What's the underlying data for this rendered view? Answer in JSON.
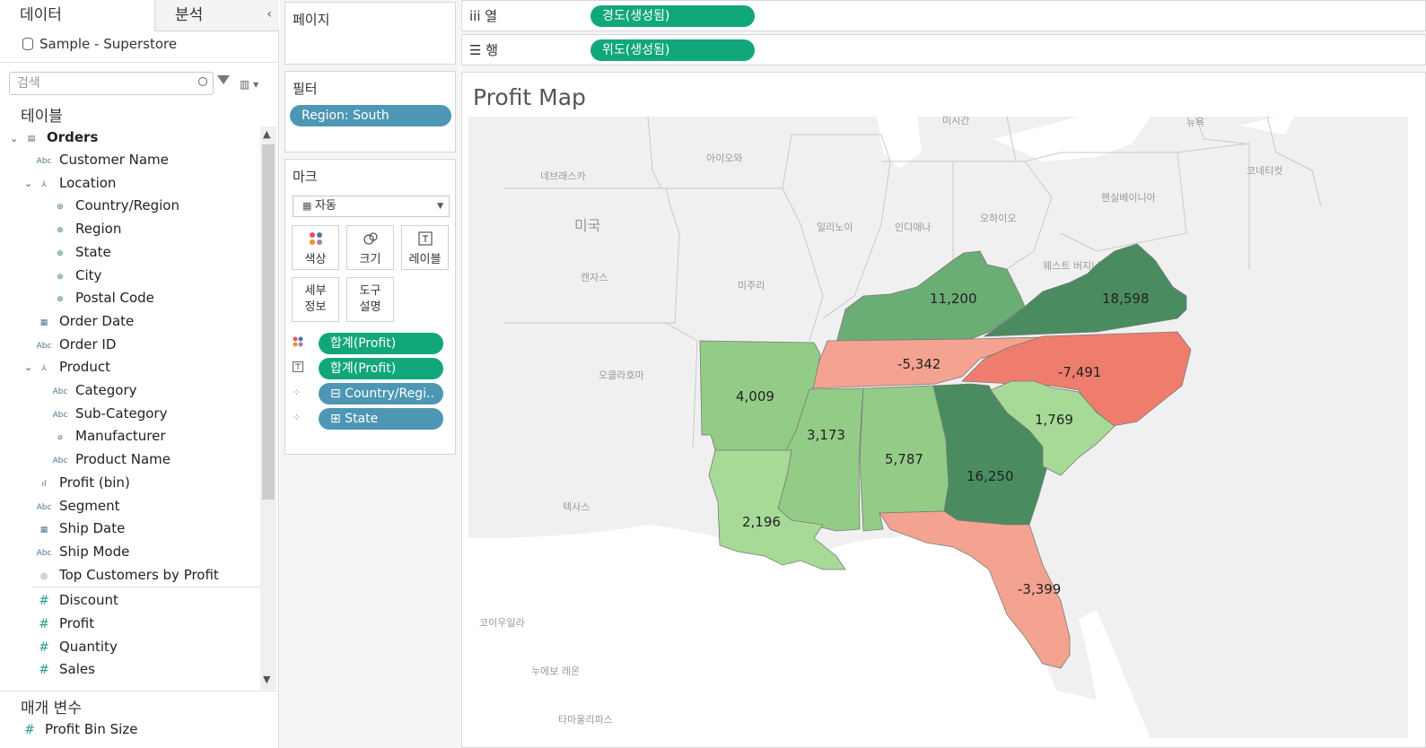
{
  "left": {
    "tabs": {
      "data": "데이터",
      "analysis": "분석"
    },
    "collapse": "‹",
    "datasource": "Sample - Superstore",
    "search_placeholder": "검색",
    "tables_header": "테이블",
    "params_header": "매개 변수",
    "table_name": "Orders",
    "fields": [
      {
        "label": "Customer Name",
        "icon": "Abc"
      },
      {
        "label": "Location",
        "icon": "hier"
      },
      {
        "label": "Country/Region",
        "icon": "globe"
      },
      {
        "label": "Region",
        "icon": "globe"
      },
      {
        "label": "State",
        "icon": "globe"
      },
      {
        "label": "City",
        "icon": "globe"
      },
      {
        "label": "Postal Code",
        "icon": "globe"
      },
      {
        "label": "Order Date",
        "icon": "calendar"
      },
      {
        "label": "Order ID",
        "icon": "Abc"
      },
      {
        "label": "Product",
        "icon": "hier"
      },
      {
        "label": "Category",
        "icon": "Abc"
      },
      {
        "label": "Sub-Category",
        "icon": "Abc"
      },
      {
        "label": "Manufacturer",
        "icon": "clip"
      },
      {
        "label": "Product Name",
        "icon": "Abc"
      },
      {
        "label": "Profit (bin)",
        "icon": "bin"
      },
      {
        "label": "Segment",
        "icon": "Abc"
      },
      {
        "label": "Ship Date",
        "icon": "calendar"
      },
      {
        "label": "Ship Mode",
        "icon": "Abc"
      },
      {
        "label": "Top Customers by Profit",
        "icon": "set"
      },
      {
        "label": "Discount",
        "icon": "#"
      },
      {
        "label": "Profit",
        "icon": "#"
      },
      {
        "label": "Quantity",
        "icon": "#"
      },
      {
        "label": "Sales",
        "icon": "#"
      }
    ],
    "param": "Profit Bin Size"
  },
  "mid": {
    "pages": "페이지",
    "filters": "필터",
    "filter_pill": "Region: South",
    "marks": "마크",
    "mark_type": "자동",
    "buttons": {
      "color": "색상",
      "size": "크기",
      "label": "레이블",
      "detail": "세부\n정보",
      "tooltip": "도구\n설명"
    },
    "mark_pills": [
      "합계(Profit)",
      "합계(Profit)",
      "⊟ Country/Regi..",
      "⊞ State"
    ]
  },
  "right": {
    "columns_label": "iii  열",
    "rows_label": "☰  행",
    "columns_pill": "경도(생성됨)",
    "rows_pill": "위도(생성됨)",
    "title": "Profit Map",
    "bg_labels": [
      "미시간",
      "뉴욕",
      "코네티컷",
      "아이오와",
      "네브래스카",
      "펜실베이니아",
      "미국",
      "일리노이",
      "인디애나",
      "오하이오",
      "캔자스",
      "미주리",
      "웨스트\n버지니아",
      "오클라호마",
      "텍사스",
      "코이우일라",
      "누에보 레온",
      "타마울리파스"
    ],
    "states": [
      {
        "name": "Kentucky",
        "value": "11,200"
      },
      {
        "name": "Virginia",
        "value": "18,598"
      },
      {
        "name": "Tennessee",
        "value": "-5,342"
      },
      {
        "name": "North Carolina",
        "value": "-7,491"
      },
      {
        "name": "Arkansas",
        "value": "4,009"
      },
      {
        "name": "Mississippi",
        "value": "3,173"
      },
      {
        "name": "Alabama",
        "value": "5,787"
      },
      {
        "name": "Georgia",
        "value": "16,250"
      },
      {
        "name": "South Carolina",
        "value": "1,769"
      },
      {
        "name": "Louisiana",
        "value": "2,196"
      },
      {
        "name": "Florida",
        "value": "-3,399"
      }
    ],
    "colors": {
      "pill_green": "#12a77b",
      "pill_blue": "#4e97b4",
      "neg_strong": "#ef7d6d",
      "neg_light": "#f4a390",
      "pos_dark": "#4a8c5f",
      "pos_mid": "#6aae76",
      "pos_light": "#93cc86",
      "pos_pale": "#a7da97"
    }
  }
}
